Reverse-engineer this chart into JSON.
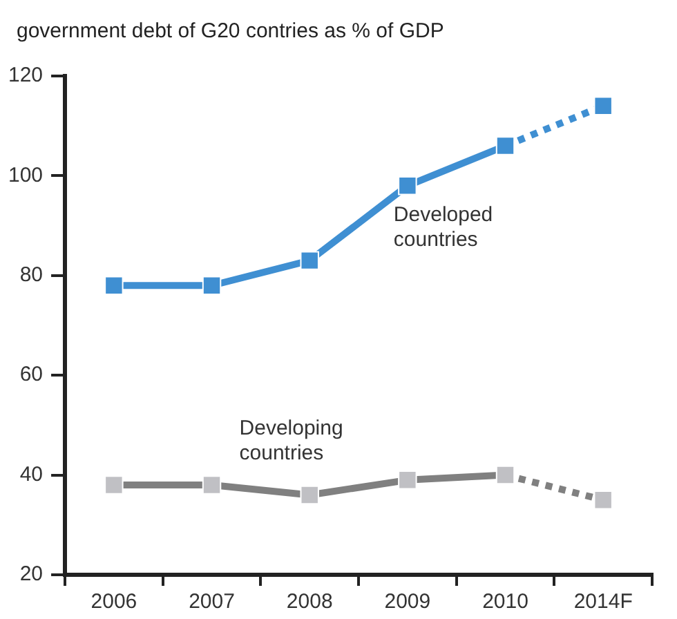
{
  "chart_data": {
    "type": "line",
    "title": "government debt of G20 contries as % of GDP",
    "categories": [
      "2006",
      "2007",
      "2008",
      "2009",
      "2010",
      "2014F"
    ],
    "ylim": [
      20,
      120
    ],
    "yticks": [
      20,
      40,
      60,
      80,
      100,
      120
    ],
    "grid": false,
    "legend": false,
    "marker": "square",
    "series": [
      {
        "name": "Developed countries",
        "color": "#3f8fd2",
        "line_style": "solid",
        "values": [
          78,
          78,
          83,
          98,
          106,
          null
        ]
      },
      {
        "color": "#3f8fd2",
        "line_style": "dotted",
        "values": [
          null,
          null,
          null,
          null,
          106,
          114
        ]
      },
      {
        "name": "Developing countries",
        "color": "#808080",
        "colors": [
          "#c0c0c4",
          "#c0c0c4",
          "#c0c0c4",
          "#c0c0c4",
          "#c0c0c4",
          "#c0c0c4"
        ],
        "line_style": "solid",
        "values": [
          38,
          38,
          36,
          39,
          40,
          null
        ]
      },
      {
        "color": "#808080",
        "colors": [
          "#c0c0c4",
          "#c0c0c4",
          "#c0c0c4",
          "#c0c0c4",
          "#c0c0c4",
          "#c0c0c4"
        ],
        "line_style": "dotted",
        "values": [
          null,
          null,
          null,
          null,
          40,
          35
        ]
      }
    ]
  }
}
